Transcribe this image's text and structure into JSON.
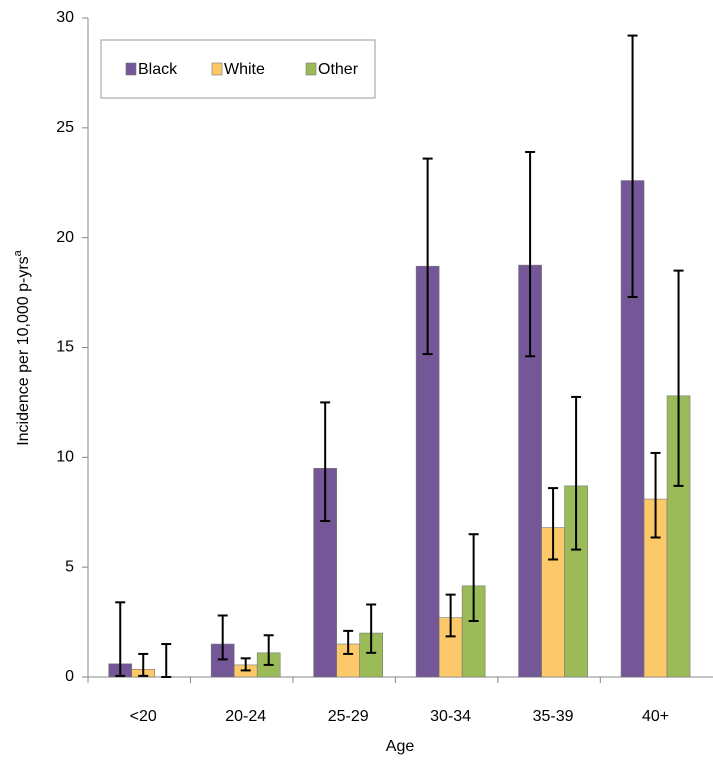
{
  "chart_data": {
    "type": "bar",
    "x_label": "Age",
    "y_label": "Incidence per 10,000 p-yrs",
    "y_label_superscript": "a",
    "categories": [
      "<20",
      "20-24",
      "25-29",
      "30-34",
      "35-39",
      "40+"
    ],
    "series": [
      {
        "name": "Black",
        "color": "#735796",
        "values": [
          0.6,
          1.5,
          9.5,
          18.7,
          18.75,
          22.6
        ],
        "lower": [
          0.05,
          0.8,
          7.1,
          14.7,
          14.6,
          17.3
        ],
        "upper": [
          3.4,
          2.8,
          12.5,
          23.6,
          23.9,
          29.2
        ]
      },
      {
        "name": "White",
        "color": "#fcc96a",
        "values": [
          0.35,
          0.55,
          1.5,
          2.7,
          6.8,
          8.1
        ],
        "lower": [
          0.05,
          0.3,
          1.05,
          1.85,
          5.35,
          6.35
        ],
        "upper": [
          1.05,
          0.85,
          2.1,
          3.75,
          8.6,
          10.2
        ]
      },
      {
        "name": "Other",
        "color": "#9bbb59",
        "values": [
          0,
          1.1,
          2.0,
          4.15,
          8.7,
          12.8
        ],
        "lower": [
          0,
          0.55,
          1.1,
          2.55,
          5.8,
          8.7
        ],
        "upper": [
          1.5,
          1.9,
          3.3,
          6.5,
          12.75,
          18.5
        ]
      }
    ],
    "ylim": [
      0,
      30
    ],
    "yticks": [
      0,
      5,
      10,
      15,
      20,
      25,
      30
    ],
    "grid": false,
    "legend": "top-left"
  }
}
